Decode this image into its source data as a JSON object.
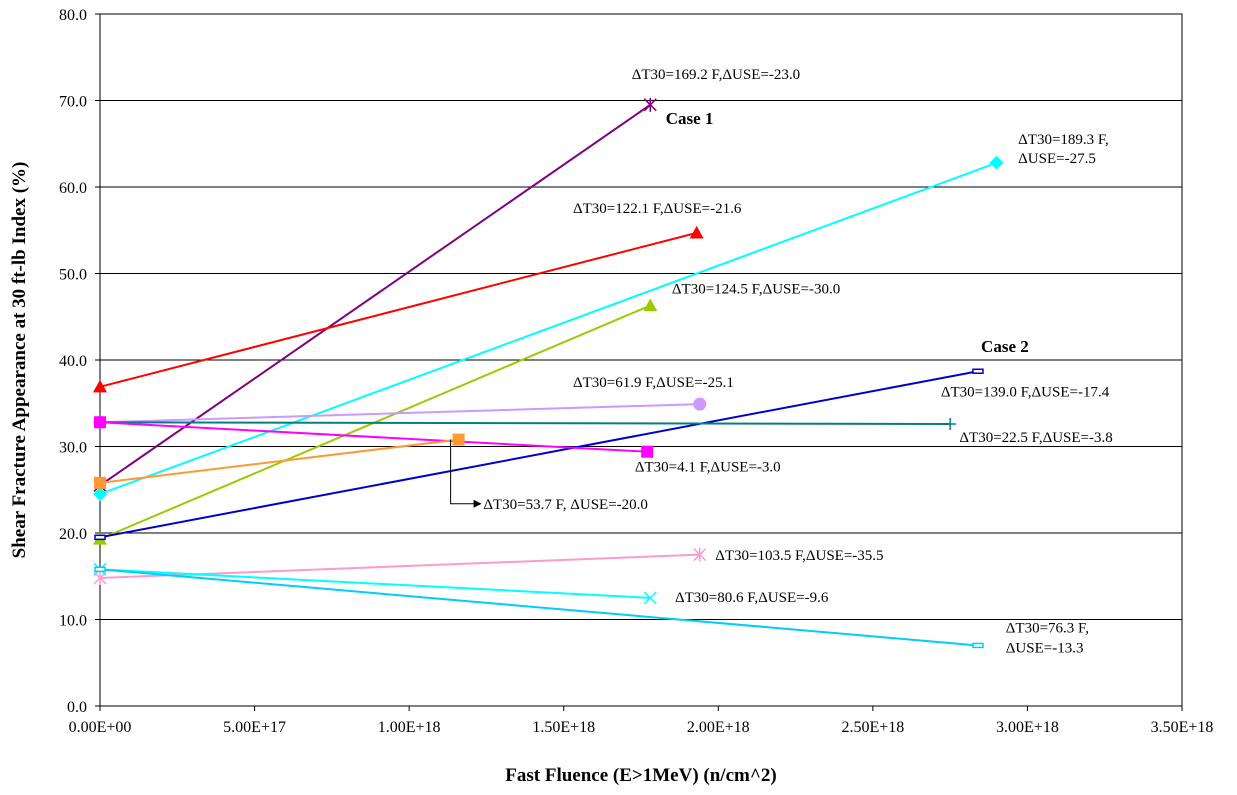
{
  "chart_data": {
    "type": "line",
    "title": "",
    "xlabel": "Fast Fluence (E>1MeV) (n/cm^2)",
    "ylabel": "Shear Fracture Appearance at 30 ft-lb Index (%)",
    "xlim": [
      0,
      3.5e+18
    ],
    "ylim": [
      0,
      80
    ],
    "grid": "horizontal",
    "x_tick_labels": [
      "0.00E+00",
      "5.00E+17",
      "1.00E+18",
      "1.50E+18",
      "2.00E+18",
      "2.50E+18",
      "3.00E+18",
      "3.50E+18"
    ],
    "y_tick_labels": [
      "0.0",
      "10.0",
      "20.0",
      "30.0",
      "40.0",
      "50.0",
      "60.0",
      "70.0",
      "80.0"
    ],
    "series": [
      {
        "color": "#800080",
        "marker": "asterisk",
        "x": [
          0,
          1.78e+18
        ],
        "y": [
          25.5,
          69.5
        ]
      },
      {
        "color": "#ff0000",
        "marker": "triangle",
        "x": [
          0,
          1.93e+18
        ],
        "y": [
          36.9,
          54.7
        ]
      },
      {
        "color": "#00ffff",
        "marker": "diamond",
        "x": [
          0,
          2.9e+18
        ],
        "y": [
          24.5,
          62.8
        ]
      },
      {
        "color": "#99cc00",
        "marker": "triangle",
        "x": [
          0,
          1.78e+18
        ],
        "y": [
          19.3,
          46.3
        ]
      },
      {
        "color": "#0000cc",
        "marker": "rect-open",
        "x": [
          0,
          2.84e+18
        ],
        "y": [
          19.5,
          38.7
        ]
      },
      {
        "color": "#cc99ff",
        "marker": "circle",
        "x": [
          0,
          1.94e+18
        ],
        "y": [
          32.8,
          34.9
        ]
      },
      {
        "color": "#008080",
        "marker": "plus",
        "x": [
          0,
          2.75e+18
        ],
        "y": [
          32.8,
          32.6
        ]
      },
      {
        "color": "#ff00ff",
        "marker": "square",
        "x": [
          0,
          1.77e+18
        ],
        "y": [
          32.8,
          29.4
        ]
      },
      {
        "color": "#ff9933",
        "marker": "square",
        "x": [
          0,
          1.16e+18
        ],
        "y": [
          25.8,
          30.8
        ]
      },
      {
        "color": "#ff99cc",
        "marker": "asterisk",
        "x": [
          0,
          1.94e+18
        ],
        "y": [
          14.8,
          17.5
        ]
      },
      {
        "color": "#00ffff",
        "marker": "x",
        "x": [
          0,
          1.78e+18
        ],
        "y": [
          15.8,
          12.5
        ]
      },
      {
        "color": "#00ccff",
        "marker": "rect-open",
        "x": [
          0,
          2.84e+18
        ],
        "y": [
          15.8,
          7.0
        ]
      }
    ],
    "annotations": [
      {
        "text": "ΔT30=169.2 F,ΔUSE=-23.0",
        "x": 1.72e+18,
        "y": 72.5
      },
      {
        "text": "Case 1",
        "x": 1.83e+18,
        "y": 67.3,
        "bold": true
      },
      {
        "text": "ΔT30=189.3 F,",
        "x": 2.97e+18,
        "y": 65.0
      },
      {
        "text": "ΔUSE=-27.5",
        "x": 2.97e+18,
        "y": 62.8
      },
      {
        "text": "ΔT30=122.1 F,ΔUSE=-21.6",
        "x": 1.53e+18,
        "y": 57.0
      },
      {
        "text": "ΔT30=124.5 F,ΔUSE=-30.0",
        "x": 1.85e+18,
        "y": 47.7
      },
      {
        "text": "Case 2",
        "x": 2.85e+18,
        "y": 40.9,
        "bold": true
      },
      {
        "text": "ΔT30=61.9 F,ΔUSE=-25.1",
        "x": 1.53e+18,
        "y": 36.9
      },
      {
        "text": "ΔT30=139.0 F,ΔUSE=-17.4",
        "x": 2.72e+18,
        "y": 35.8
      },
      {
        "text": "ΔT30=22.5 F,ΔUSE=-3.8",
        "x": 2.78e+18,
        "y": 30.5
      },
      {
        "text": "ΔT30=4.1 F,ΔUSE=-3.0",
        "x": 1.73e+18,
        "y": 27.1
      },
      {
        "text": "ΔT30=53.7 F, ΔUSE=-20.0",
        "x": 1.24e+18,
        "y": 22.8
      },
      {
        "text": "ΔT30=103.5 F,ΔUSE=-35.5",
        "x": 1.99e+18,
        "y": 16.9
      },
      {
        "text": "ΔT30=80.6 F,ΔUSE=-9.6",
        "x": 1.86e+18,
        "y": 12.0
      },
      {
        "text": "ΔT30=76.3 F,",
        "x": 2.93e+18,
        "y": 8.5
      },
      {
        "text": "ΔUSE=-13.3",
        "x": 2.93e+18,
        "y": 6.2
      }
    ]
  }
}
